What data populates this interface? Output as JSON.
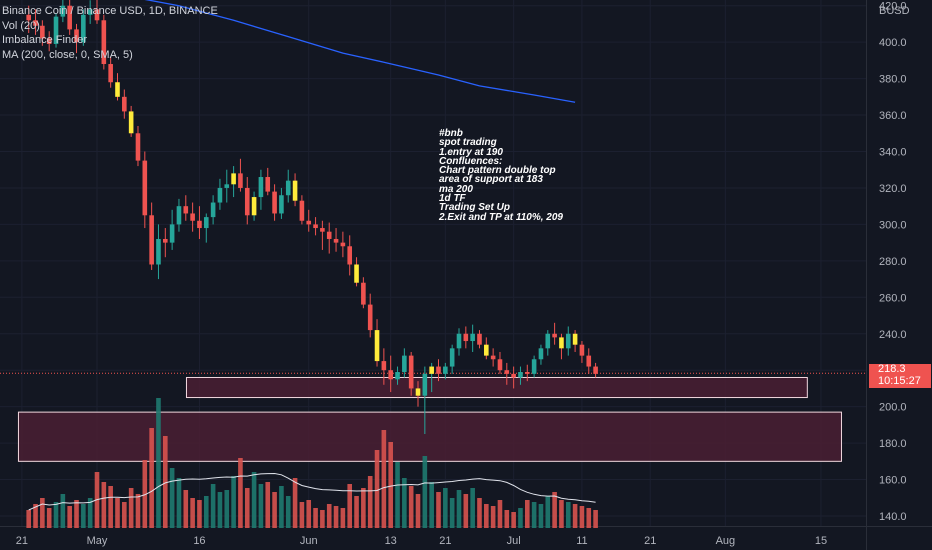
{
  "legend": {
    "symbol": "Binance Coin / Binance USD, 1D, BINANCE",
    "vol": "Vol (20)",
    "indicator": "Imbalance Finder",
    "ma": "MA (200, close, 0, SMA, 5)"
  },
  "currency": "BUSD",
  "last_price": "218.3",
  "countdown": "10:15:27",
  "annotation": [
    "#bnb",
    "spot trading",
    "1.entry at 190",
    "Confluences:",
    "Chart pattern double top",
    "area of support at 183",
    "ma 200",
    "1d TF",
    "Trading Set Up",
    "2.Exit and TP at 110%, 209"
  ],
  "colors": {
    "background": "#131722",
    "up": "#26a69a",
    "down": "#ef5350",
    "highlight": "#ffeb3b",
    "ma_line": "#2962ff",
    "zone_fill": "#4a1f33",
    "zone_border": "#f3d9e0"
  },
  "chart_data": {
    "type": "candlestick",
    "y_axis": {
      "min": 135,
      "max": 428,
      "ticks": [
        140,
        160,
        180,
        200,
        220,
        240,
        260,
        280,
        300,
        320,
        340,
        360,
        380,
        400,
        420
      ]
    },
    "y_tick_labels": [
      "140.0",
      "160.0",
      "180.0",
      "200.0",
      "",
      "240.0",
      "260.0",
      "280.0",
      "300.0",
      "320.0",
      "340.0",
      "360.0",
      "380.0",
      "400.0",
      "420.0"
    ],
    "x_tick_labels": [
      {
        "label": "21",
        "day": -11
      },
      {
        "label": "May",
        "day": 0
      },
      {
        "label": "16",
        "day": 15
      },
      {
        "label": "Jun",
        "day": 31
      },
      {
        "label": "13",
        "day": 43
      },
      {
        "label": "21",
        "day": 51
      },
      {
        "label": "Jul",
        "day": 61
      },
      {
        "label": "11",
        "day": 71
      },
      {
        "label": "21",
        "day": 81
      },
      {
        "label": "Aug",
        "day": 92
      },
      {
        "label": "15",
        "day": 106
      }
    ],
    "candles": [
      [
        -10,
        415,
        420,
        405,
        412
      ],
      [
        -9,
        412,
        418,
        404,
        409
      ],
      [
        -8,
        409,
        412,
        398,
        402
      ],
      [
        -7,
        402,
        406,
        395,
        399
      ],
      [
        -6,
        399,
        416,
        397,
        414
      ],
      [
        -5,
        414,
        425,
        411,
        420
      ],
      [
        -4,
        420,
        424,
        404,
        407
      ],
      [
        -3,
        407,
        410,
        394,
        400
      ],
      [
        -2,
        400,
        418,
        398,
        415
      ],
      [
        -1,
        415,
        423,
        410,
        418
      ],
      [
        0,
        418,
        428,
        410,
        412
      ],
      [
        1,
        412,
        415,
        385,
        388
      ],
      [
        2,
        388,
        392,
        375,
        378
      ],
      [
        3,
        378,
        383,
        368,
        370
      ],
      [
        4,
        370,
        374,
        358,
        362
      ],
      [
        5,
        362,
        365,
        348,
        350
      ],
      [
        6,
        350,
        354,
        332,
        335
      ],
      [
        7,
        335,
        340,
        298,
        305
      ],
      [
        8,
        305,
        312,
        275,
        278
      ],
      [
        9,
        278,
        300,
        270,
        292
      ],
      [
        10,
        292,
        298,
        282,
        290
      ],
      [
        11,
        290,
        308,
        286,
        300
      ],
      [
        12,
        300,
        314,
        296,
        310
      ],
      [
        13,
        310,
        316,
        302,
        306
      ],
      [
        14,
        306,
        312,
        296,
        302
      ],
      [
        15,
        302,
        310,
        292,
        298
      ],
      [
        16,
        298,
        306,
        290,
        304
      ],
      [
        17,
        304,
        316,
        300,
        312
      ],
      [
        18,
        312,
        325,
        308,
        320
      ],
      [
        19,
        320,
        330,
        312,
        322
      ],
      [
        20,
        322,
        332,
        315,
        328
      ],
      [
        21,
        328,
        336,
        318,
        320
      ],
      [
        22,
        320,
        326,
        300,
        305
      ],
      [
        23,
        305,
        318,
        302,
        315
      ],
      [
        24,
        315,
        330,
        308,
        326
      ],
      [
        25,
        326,
        331,
        316,
        318
      ],
      [
        26,
        318,
        322,
        302,
        306
      ],
      [
        27,
        306,
        320,
        303,
        316
      ],
      [
        28,
        316,
        330,
        312,
        324
      ],
      [
        29,
        324,
        328,
        310,
        313
      ],
      [
        30,
        313,
        316,
        300,
        302
      ],
      [
        31,
        302,
        308,
        296,
        300
      ],
      [
        32,
        300,
        304,
        294,
        298
      ],
      [
        33,
        298,
        302,
        286,
        296
      ],
      [
        34,
        296,
        301,
        284,
        292
      ],
      [
        35,
        292,
        298,
        285,
        290
      ],
      [
        36,
        290,
        296,
        282,
        288
      ],
      [
        37,
        288,
        294,
        272,
        278
      ],
      [
        38,
        278,
        282,
        266,
        268
      ],
      [
        39,
        268,
        271,
        254,
        256
      ],
      [
        40,
        256,
        262,
        238,
        242
      ],
      [
        41,
        242,
        248,
        222,
        225
      ],
      [
        42,
        225,
        232,
        212,
        220
      ],
      [
        43,
        220,
        228,
        208,
        215
      ],
      [
        44,
        215,
        222,
        212,
        219
      ],
      [
        45,
        219,
        232,
        216,
        228
      ],
      [
        46,
        228,
        230,
        206,
        210
      ],
      [
        47,
        210,
        214,
        200,
        206
      ],
      [
        48,
        206,
        222,
        185,
        218
      ],
      [
        49,
        218,
        224,
        208,
        222
      ],
      [
        50,
        222,
        226,
        214,
        218
      ],
      [
        51,
        218,
        224,
        215,
        222
      ],
      [
        52,
        222,
        234,
        218,
        232
      ],
      [
        53,
        232,
        243,
        228,
        240
      ],
      [
        54,
        240,
        244,
        232,
        236
      ],
      [
        55,
        236,
        245,
        230,
        240
      ],
      [
        56,
        240,
        242,
        232,
        234
      ],
      [
        57,
        234,
        238,
        226,
        228
      ],
      [
        58,
        228,
        232,
        222,
        226
      ],
      [
        59,
        226,
        230,
        218,
        220
      ],
      [
        60,
        220,
        224,
        212,
        218
      ],
      [
        61,
        218,
        222,
        210,
        216
      ],
      [
        62,
        216,
        222,
        212,
        219
      ],
      [
        63,
        219,
        223,
        214,
        218
      ],
      [
        64,
        218,
        228,
        216,
        226
      ],
      [
        65,
        226,
        234,
        223,
        232
      ],
      [
        66,
        232,
        242,
        228,
        240
      ],
      [
        67,
        240,
        246,
        234,
        238
      ],
      [
        68,
        238,
        240,
        226,
        232
      ],
      [
        69,
        232,
        244,
        228,
        240
      ],
      [
        70,
        240,
        242,
        230,
        234
      ],
      [
        71,
        234,
        236,
        224,
        228
      ],
      [
        72,
        228,
        232,
        218,
        222
      ],
      [
        73,
        222,
        224,
        216,
        218
      ]
    ],
    "highlighted_days": [
      3,
      5,
      20,
      23,
      29,
      38,
      41,
      47,
      49,
      57,
      68,
      70
    ],
    "volume_bars": [
      [
        -10,
        18
      ],
      [
        -9,
        24
      ],
      [
        -8,
        30
      ],
      [
        -7,
        20
      ],
      [
        -6,
        26
      ],
      [
        -5,
        34
      ],
      [
        -4,
        22
      ],
      [
        -3,
        28
      ],
      [
        -2,
        24
      ],
      [
        -1,
        30
      ],
      [
        0,
        56
      ],
      [
        1,
        46
      ],
      [
        2,
        42
      ],
      [
        3,
        30
      ],
      [
        4,
        26
      ],
      [
        5,
        40
      ],
      [
        6,
        34
      ],
      [
        7,
        68
      ],
      [
        8,
        100
      ],
      [
        9,
        130
      ],
      [
        10,
        92
      ],
      [
        11,
        60
      ],
      [
        12,
        50
      ],
      [
        13,
        38
      ],
      [
        14,
        30
      ],
      [
        15,
        28
      ],
      [
        16,
        32
      ],
      [
        17,
        44
      ],
      [
        18,
        36
      ],
      [
        19,
        38
      ],
      [
        20,
        52
      ],
      [
        21,
        70
      ],
      [
        22,
        40
      ],
      [
        23,
        56
      ],
      [
        24,
        44
      ],
      [
        25,
        46
      ],
      [
        26,
        36
      ],
      [
        27,
        42
      ],
      [
        28,
        32
      ],
      [
        29,
        50
      ],
      [
        30,
        26
      ],
      [
        31,
        28
      ],
      [
        32,
        20
      ],
      [
        33,
        18
      ],
      [
        34,
        24
      ],
      [
        35,
        22
      ],
      [
        36,
        20
      ],
      [
        37,
        44
      ],
      [
        38,
        32
      ],
      [
        39,
        40
      ],
      [
        40,
        52
      ],
      [
        41,
        78
      ],
      [
        42,
        98
      ],
      [
        43,
        86
      ],
      [
        44,
        66
      ],
      [
        45,
        50
      ],
      [
        46,
        42
      ],
      [
        47,
        34
      ],
      [
        48,
        72
      ],
      [
        49,
        46
      ],
      [
        50,
        36
      ],
      [
        51,
        40
      ],
      [
        52,
        30
      ],
      [
        53,
        38
      ],
      [
        54,
        34
      ],
      [
        55,
        40
      ],
      [
        56,
        30
      ],
      [
        57,
        24
      ],
      [
        58,
        22
      ],
      [
        59,
        28
      ],
      [
        60,
        18
      ],
      [
        61,
        16
      ],
      [
        62,
        20
      ],
      [
        63,
        28
      ],
      [
        64,
        26
      ],
      [
        65,
        24
      ],
      [
        66,
        32
      ],
      [
        67,
        36
      ],
      [
        68,
        28
      ],
      [
        69,
        26
      ],
      [
        70,
        24
      ],
      [
        71,
        22
      ],
      [
        72,
        20
      ],
      [
        73,
        18
      ]
    ],
    "ma_line": [
      [
        -1,
        429
      ],
      [
        12,
        420
      ],
      [
        20,
        412
      ],
      [
        28,
        403
      ],
      [
        36,
        394
      ],
      [
        42,
        389
      ],
      [
        50,
        382
      ],
      [
        56,
        376
      ],
      [
        64,
        371
      ],
      [
        70,
        367
      ]
    ],
    "support_zones": [
      {
        "day_start": 13.1,
        "day_end": 104,
        "price_top": 216,
        "price_bottom": 205
      },
      {
        "day_start": -11.5,
        "day_end": 109,
        "price_top": 197,
        "price_bottom": 170
      }
    ]
  }
}
